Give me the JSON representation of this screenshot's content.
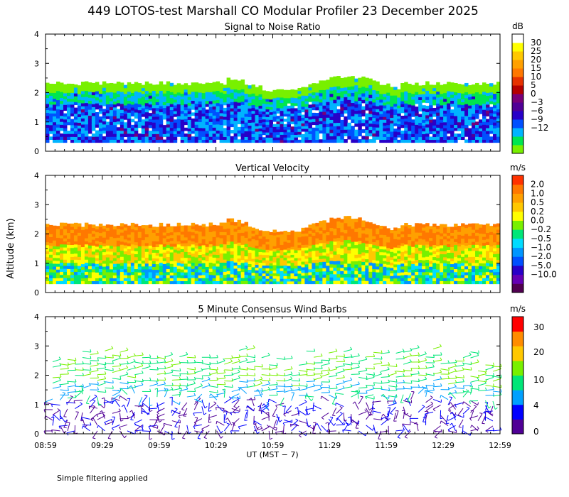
{
  "title": "449 LOTOS-test Marshall CO Modular Profiler 23 December 2025",
  "footer_note": "Simple filtering applied",
  "colors": {
    "snr_scale": [
      "#78f000",
      "#00e650",
      "#00b4ff",
      "#0050ff",
      "#2800c8",
      "#500096",
      "#780078",
      "#b40000",
      "#e63200",
      "#ff7800",
      "#ffa000",
      "#ffc800",
      "#ffff00",
      "#ffffff"
    ],
    "vv_scale": [
      "#500050",
      "#6400b4",
      "#2800c8",
      "#0050ff",
      "#0096ff",
      "#00dcff",
      "#00e678",
      "#78f000",
      "#ffff00",
      "#ffc800",
      "#ffa000",
      "#ff7800",
      "#ff3200"
    ],
    "wind_scale": [
      "#500096",
      "#0000ff",
      "#00a0ff",
      "#00e678",
      "#78f000",
      "#ffc800",
      "#ff8c00",
      "#ff0000"
    ]
  },
  "chart_data": [
    {
      "type": "heatmap",
      "title": "Signal to Noise Ratio",
      "xlabel": "",
      "ylabel": "",
      "x_ticks": [
        "08:59",
        "09:29",
        "09:59",
        "10:29",
        "10:59",
        "11:29",
        "11:59",
        "12:29",
        "12:59"
      ],
      "y_ticks": [
        "0",
        "1",
        "2",
        "3",
        "4"
      ],
      "ylim": [
        0,
        4
      ],
      "y_units": "km",
      "data_altitude_range_km": [
        0.3,
        2.3
      ],
      "colorbar": {
        "units": "dB",
        "labels": [
          "30",
          "25",
          "20",
          "15",
          "10",
          "5",
          "0",
          "−3",
          "−6",
          "−9",
          "−12"
        ]
      }
    },
    {
      "type": "heatmap",
      "title": "Vertical Velocity",
      "ylabel": "Altitude (km)",
      "x_ticks": [
        "08:59",
        "09:29",
        "09:59",
        "10:29",
        "10:59",
        "11:29",
        "11:59",
        "12:29",
        "12:59"
      ],
      "y_ticks": [
        "0",
        "1",
        "2",
        "3",
        "4"
      ],
      "ylim": [
        0,
        4
      ],
      "data_altitude_range_km": [
        0.3,
        2.3
      ],
      "colorbar": {
        "units": "m/s",
        "labels": [
          "2.0",
          "1.0",
          "0.5",
          "0.2",
          "0.0",
          "−0.2",
          "−0.5",
          "−1.0",
          "−2.0",
          "−5.0",
          "−10.0"
        ]
      }
    },
    {
      "type": "scatter",
      "subtype": "wind_barbs",
      "title": "5 Minute Consensus Wind Barbs",
      "xlabel": "UT  (MST − 7)",
      "x_ticks": [
        "08:59",
        "09:29",
        "09:59",
        "10:29",
        "10:59",
        "11:29",
        "11:59",
        "12:29",
        "12:59"
      ],
      "y_ticks": [
        "0",
        "1",
        "2",
        "3",
        "4"
      ],
      "ylim": [
        0,
        4
      ],
      "data_altitude_range_km": [
        0.1,
        2.9
      ],
      "colorbar": {
        "units": "m/s",
        "labels": [
          "30",
          "20",
          "10",
          "4",
          "0"
        ]
      }
    }
  ]
}
